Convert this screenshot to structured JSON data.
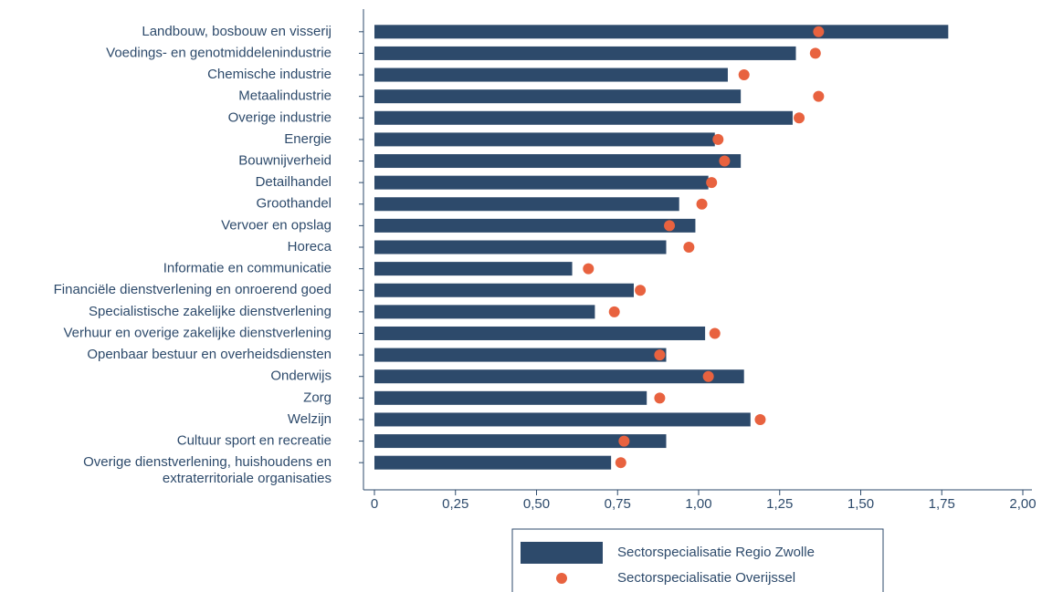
{
  "chart_data": {
    "type": "bar",
    "orientation": "horizontal",
    "categories": [
      "Landbouw, bosbouw en visserij",
      "Voedings- en genotmiddelenindustrie",
      "Chemische industrie",
      "Metaalindustrie",
      "Overige industrie",
      "Energie",
      "Bouwnijverheid",
      "Detailhandel",
      "Groothandel",
      "Vervoer en opslag",
      "Horeca",
      "Informatie en communicatie",
      "Financiële dienstverlening en onroerend goed",
      "Specialistische zakelijke dienstverlening",
      "Verhuur en overige zakelijke dienstverlening",
      "Openbaar bestuur en overheidsdiensten",
      "Onderwijs",
      "Zorg",
      "Welzijn",
      "Cultuur sport en recreatie",
      "Overige dienstverlening, huishoudens en\nextraterritoriale organisaties"
    ],
    "series": [
      {
        "name": "Sectorspecialisatie Regio Zwolle",
        "mark": "bar",
        "color": "#2d4a6b",
        "values": [
          1.77,
          1.3,
          1.09,
          1.13,
          1.29,
          1.05,
          1.13,
          1.03,
          0.94,
          0.99,
          0.9,
          0.61,
          0.8,
          0.68,
          1.02,
          0.9,
          1.14,
          0.84,
          1.16,
          0.9,
          0.73
        ]
      },
      {
        "name": "Sectorspecialisatie Overijssel",
        "mark": "dot",
        "color": "#e8623f",
        "values": [
          1.37,
          1.36,
          1.14,
          1.37,
          1.31,
          1.06,
          1.08,
          1.04,
          1.01,
          0.91,
          0.97,
          0.66,
          0.82,
          0.74,
          1.05,
          0.88,
          1.03,
          0.88,
          1.19,
          0.77,
          0.76
        ]
      }
    ],
    "xlim": [
      0,
      2
    ],
    "xticks": [
      0,
      {
        "value": 0.25,
        "label": "0,25"
      },
      {
        "value": 0.5,
        "label": "0,50"
      },
      {
        "value": 0.75,
        "label": "0,75"
      },
      {
        "value": 1,
        "label": "1,00"
      },
      {
        "value": 1.25,
        "label": "1,25"
      },
      {
        "value": 1.5,
        "label": "1,50"
      },
      {
        "value": 1.75,
        "label": "1,75"
      },
      {
        "value": 2,
        "label": "2,00"
      }
    ],
    "legend": "bottom"
  }
}
